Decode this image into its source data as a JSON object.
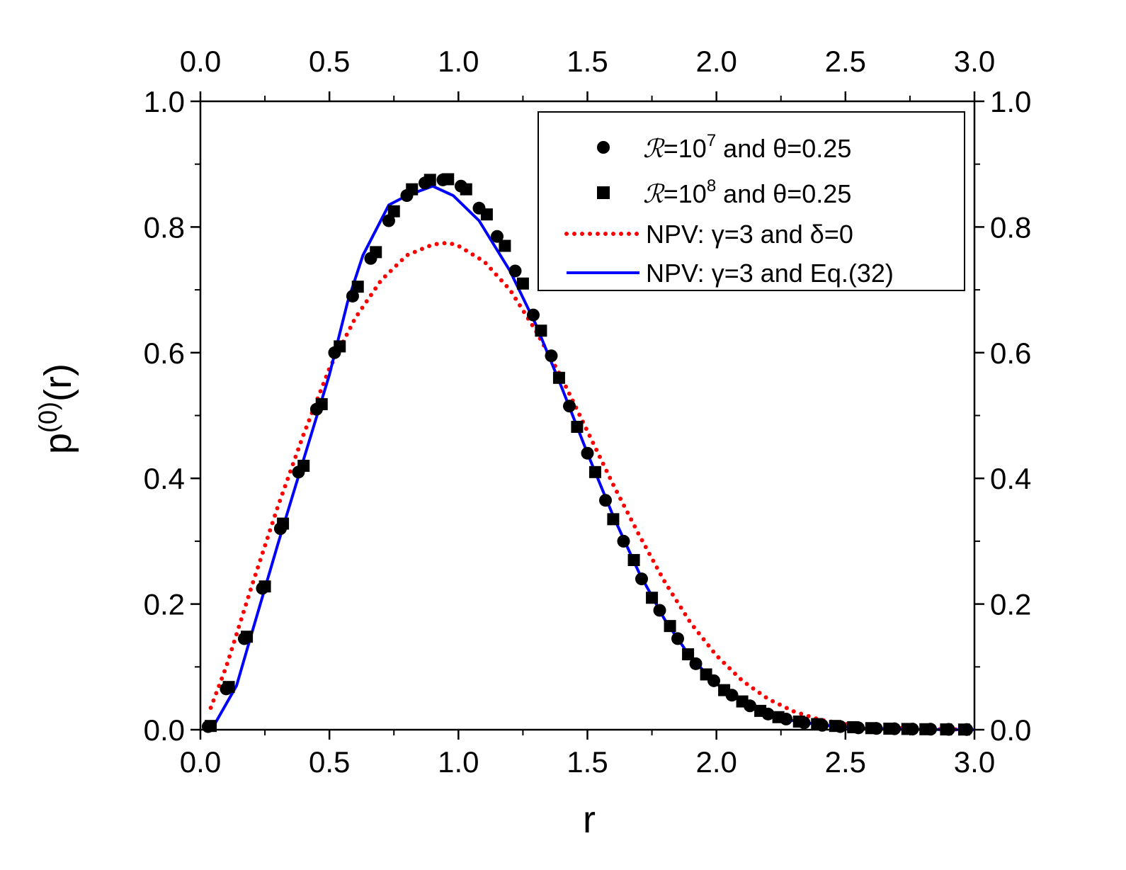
{
  "chart_data": {
    "type": "scatter",
    "title": "",
    "xlabel": "r",
    "ylabel_base": "p",
    "ylabel_sup": "(0)",
    "ylabel_tail": "(r)",
    "xlim": [
      0,
      3
    ],
    "ylim": [
      0,
      1
    ],
    "x_ticks": [
      0.0,
      0.5,
      1.0,
      1.5,
      2.0,
      2.5,
      3.0
    ],
    "y_ticks": [
      0.0,
      0.2,
      0.4,
      0.6,
      0.8,
      1.0
    ],
    "x_tick_labels": [
      "0.0",
      "0.5",
      "1.0",
      "1.5",
      "2.0",
      "2.5",
      "3.0"
    ],
    "y_tick_labels": [
      "0.0",
      "0.2",
      "0.4",
      "0.6",
      "0.8",
      "1.0"
    ],
    "grid": false,
    "legend_position": "top-right",
    "series": [
      {
        "name": "ℛ=10⁷ and θ=0.25",
        "label_pre": "=10",
        "label_script": "ℛ",
        "label_sup": "7",
        "label_post": " and θ=0.25",
        "kind": "markers",
        "marker": "circle",
        "color": "#000000",
        "x": [
          0.03,
          0.1,
          0.17,
          0.24,
          0.31,
          0.38,
          0.45,
          0.52,
          0.59,
          0.66,
          0.73,
          0.8,
          0.87,
          0.94,
          1.01,
          1.08,
          1.15,
          1.22,
          1.29,
          1.36,
          1.43,
          1.5,
          1.57,
          1.64,
          1.71,
          1.78,
          1.85,
          1.92,
          1.99,
          2.06,
          2.13,
          2.2,
          2.27,
          2.34,
          2.41,
          2.48,
          2.55,
          2.62,
          2.69,
          2.76,
          2.83,
          2.9,
          2.97
        ],
        "y": [
          0.005,
          0.065,
          0.145,
          0.225,
          0.32,
          0.41,
          0.51,
          0.6,
          0.69,
          0.75,
          0.81,
          0.85,
          0.87,
          0.875,
          0.865,
          0.83,
          0.785,
          0.73,
          0.66,
          0.595,
          0.515,
          0.44,
          0.365,
          0.3,
          0.24,
          0.19,
          0.145,
          0.105,
          0.078,
          0.055,
          0.038,
          0.025,
          0.017,
          0.011,
          0.007,
          0.005,
          0.003,
          0.002,
          0.0015,
          0.001,
          0.0008,
          0.0005,
          0.0003
        ]
      },
      {
        "name": "ℛ=10⁸ and θ=0.25",
        "label_pre": "=10",
        "label_script": "ℛ",
        "label_sup": "8",
        "label_post": " and θ=0.25",
        "kind": "markers",
        "marker": "square",
        "color": "#000000",
        "x": [
          0.04,
          0.11,
          0.18,
          0.25,
          0.32,
          0.4,
          0.47,
          0.54,
          0.61,
          0.68,
          0.75,
          0.82,
          0.89,
          0.96,
          1.03,
          1.11,
          1.18,
          1.25,
          1.32,
          1.39,
          1.46,
          1.53,
          1.6,
          1.68,
          1.75,
          1.82,
          1.89,
          1.96,
          2.03,
          2.1,
          2.17,
          2.24,
          2.32,
          2.39,
          2.46,
          2.53,
          2.6,
          2.67,
          2.74,
          2.81,
          2.89,
          2.96
        ],
        "y": [
          0.006,
          0.068,
          0.148,
          0.228,
          0.328,
          0.42,
          0.518,
          0.61,
          0.705,
          0.76,
          0.825,
          0.86,
          0.875,
          0.876,
          0.86,
          0.82,
          0.77,
          0.71,
          0.635,
          0.56,
          0.482,
          0.41,
          0.335,
          0.27,
          0.21,
          0.165,
          0.12,
          0.088,
          0.063,
          0.045,
          0.03,
          0.02,
          0.013,
          0.009,
          0.006,
          0.004,
          0.0025,
          0.0017,
          0.0012,
          0.0008,
          0.0005,
          0.0003
        ]
      },
      {
        "name": "NPV: γ=3 and δ=0",
        "label_text": "NPV: γ=3 and δ=0",
        "kind": "dotted-line",
        "color": "#ff0000",
        "x": [
          0.04,
          0.1,
          0.2,
          0.3,
          0.4,
          0.5,
          0.6,
          0.7,
          0.8,
          0.9,
          0.96,
          1.0,
          1.1,
          1.2,
          1.3,
          1.4,
          1.5,
          1.6,
          1.7,
          1.8,
          1.9,
          2.0,
          2.1,
          2.2,
          2.3,
          2.4,
          2.5,
          2.6,
          2.7,
          2.8,
          2.9,
          3.0
        ],
        "y": [
          0.035,
          0.1,
          0.23,
          0.355,
          0.47,
          0.575,
          0.655,
          0.715,
          0.755,
          0.772,
          0.775,
          0.77,
          0.745,
          0.7,
          0.635,
          0.56,
          0.475,
          0.39,
          0.31,
          0.235,
          0.17,
          0.118,
          0.078,
          0.049,
          0.029,
          0.016,
          0.009,
          0.005,
          0.0025,
          0.0012,
          0.0006,
          0.0003
        ]
      },
      {
        "name": "NPV: γ=3 and Eq.(32)",
        "label_text": "NPV: γ=3 and Eq.(32)",
        "kind": "solid-line",
        "color": "#0000ff",
        "x": [
          0.05,
          0.14,
          0.2,
          0.3,
          0.4,
          0.5,
          0.57,
          0.63,
          0.73,
          0.8,
          0.9,
          0.98,
          1.08,
          1.2,
          1.3,
          1.4,
          1.5,
          1.6,
          1.7,
          1.8,
          1.9,
          2.0,
          2.1,
          2.2,
          2.3,
          2.4,
          2.5,
          2.6,
          2.7,
          2.8,
          2.9,
          3.0
        ],
        "y": [
          0.005,
          0.07,
          0.155,
          0.295,
          0.43,
          0.565,
          0.68,
          0.755,
          0.835,
          0.85,
          0.865,
          0.85,
          0.81,
          0.73,
          0.645,
          0.545,
          0.44,
          0.34,
          0.25,
          0.175,
          0.115,
          0.073,
          0.044,
          0.025,
          0.014,
          0.008,
          0.004,
          0.002,
          0.001,
          0.0005,
          0.0002,
          0.0001
        ]
      }
    ]
  }
}
